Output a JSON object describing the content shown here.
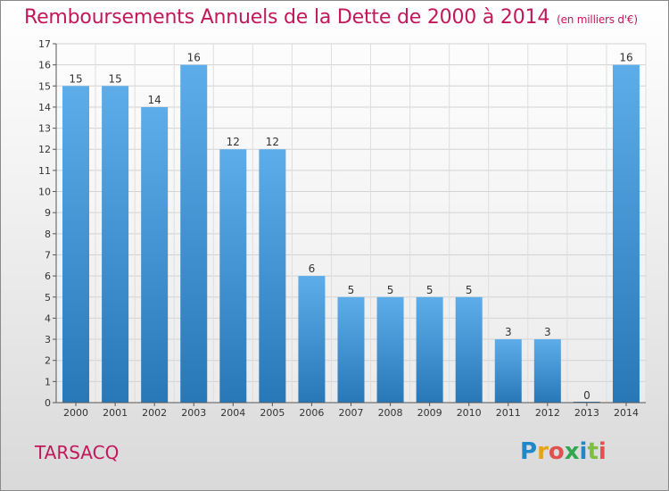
{
  "header": {
    "title": "Remboursements Annuels de la Dette de 2000 à 2014",
    "subtitle": "(en milliers d'€)"
  },
  "footer": {
    "town": "TARSACQ",
    "logo_letters": [
      "P",
      "r",
      "o",
      "x",
      "i",
      "t",
      "i"
    ],
    "logo_colors": [
      "#1e88c9",
      "#e8a21a",
      "#e0524f",
      "#2fa84f",
      "#1e88c9",
      "#7fbf3f",
      "#e0524f"
    ]
  },
  "chart_data": {
    "type": "bar",
    "categories": [
      "2000",
      "2001",
      "2002",
      "2003",
      "2004",
      "2005",
      "2006",
      "2007",
      "2008",
      "2009",
      "2010",
      "2011",
      "2012",
      "2013",
      "2014"
    ],
    "values": [
      15,
      15,
      14,
      16,
      12,
      12,
      6,
      5,
      5,
      5,
      5,
      3,
      3,
      0,
      16
    ],
    "ylim": [
      0,
      17
    ],
    "yticks": [
      0,
      1,
      2,
      3,
      4,
      5,
      6,
      7,
      8,
      9,
      10,
      11,
      12,
      13,
      14,
      15,
      16,
      17
    ],
    "grid": true,
    "bar_color_top": "#5dadea",
    "bar_color_bottom": "#2878b8"
  }
}
